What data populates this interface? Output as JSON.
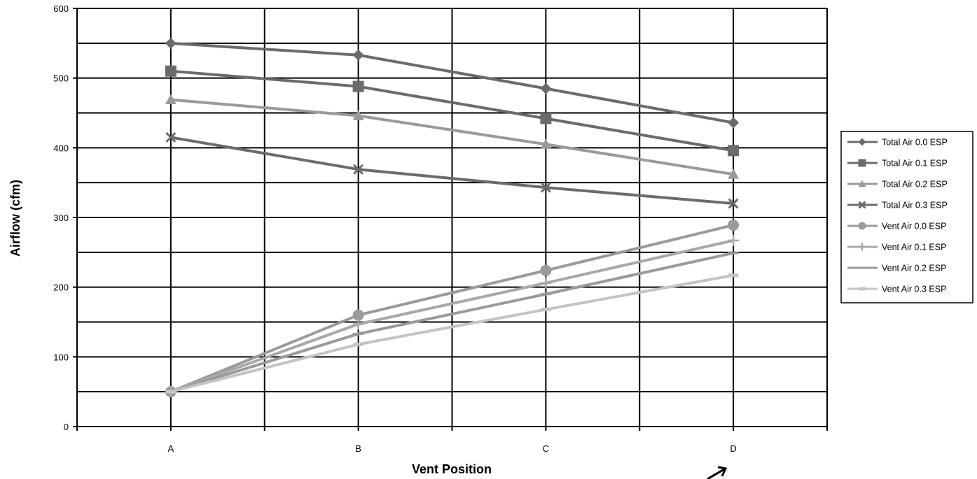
{
  "chart_data": {
    "type": "line",
    "title": "",
    "xlabel": "Vent Position",
    "ylabel": "Airflow (cfm)",
    "categories": [
      "A",
      "B",
      "C",
      "D"
    ],
    "ylim": [
      0,
      600
    ],
    "yticks": [
      0,
      100,
      200,
      300,
      400,
      500,
      600
    ],
    "grid": true,
    "legend_position": "right",
    "series": [
      {
        "name": "Total Air 0.0 ESP",
        "values": [
          550,
          533,
          485,
          436
        ],
        "color": "#6b6b6b",
        "marker": "diamond"
      },
      {
        "name": "Total Air 0.1 ESP",
        "values": [
          510,
          488,
          442,
          396
        ],
        "color": "#6b6b6b",
        "marker": "square"
      },
      {
        "name": "Total Air 0.2 ESP",
        "values": [
          469,
          446,
          405,
          362
        ],
        "color": "#9a9a9a",
        "marker": "triangle"
      },
      {
        "name": "Total Air 0.3 ESP",
        "values": [
          415,
          369,
          343,
          320
        ],
        "color": "#6b6b6b",
        "marker": "x"
      },
      {
        "name": "Vent Air 0.0 ESP",
        "values": [
          50,
          160,
          224,
          289
        ],
        "color": "#9a9a9a",
        "marker": "circle"
      },
      {
        "name": "Vent Air 0.1 ESP",
        "values": [
          50,
          147,
          206,
          267
        ],
        "color": "#a8a8a8",
        "marker": "plus"
      },
      {
        "name": "Vent Air 0.2 ESP",
        "values": [
          50,
          133,
          190,
          249
        ],
        "color": "#9a9a9a",
        "marker": "dash"
      },
      {
        "name": "Vent Air 0.3 ESP",
        "values": [
          50,
          118,
          168,
          217
        ],
        "color": "#c4c4c4",
        "marker": "bar"
      }
    ]
  }
}
